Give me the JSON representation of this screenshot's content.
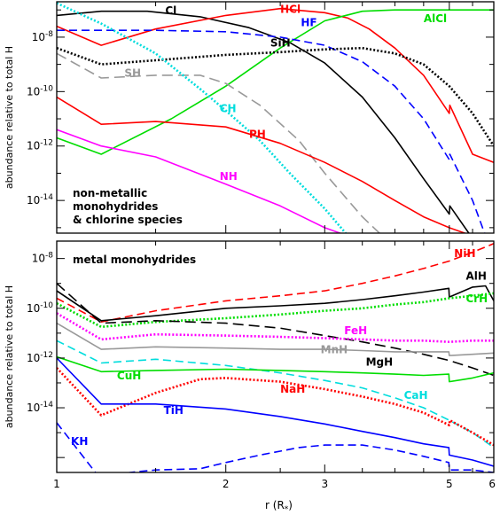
{
  "chart_data": [
    {
      "type": "line",
      "panel": "top",
      "annotation_lines": [
        "non-metallic",
        "monohydrides",
        "& chlorine species"
      ],
      "ylabel": "abundance relative to total H",
      "xlim": [
        1,
        6
      ],
      "xscale": "log",
      "ylim_log10": [
        -15.2,
        -6.7
      ],
      "yticks": [
        {
          "log10": -8,
          "label": "10",
          "exp": "-8"
        },
        {
          "log10": -10,
          "label": "10",
          "exp": "-10"
        },
        {
          "log10": -12,
          "label": "10",
          "exp": "-12"
        },
        {
          "log10": -14,
          "label": "10",
          "exp": "-14"
        }
      ],
      "series": [
        {
          "name": "Cl",
          "color": "#000000",
          "dash": "solid",
          "x": [
            1.0,
            1.2,
            1.45,
            1.8,
            2.2,
            2.6,
            3.0,
            3.5,
            4.0,
            4.5,
            5.0,
            5.01,
            5.5
          ],
          "log10": [
            -7.2,
            -7.05,
            -7.05,
            -7.25,
            -7.65,
            -8.2,
            -8.95,
            -10.2,
            -11.7,
            -13.2,
            -14.5,
            -14.2,
            -15.4
          ]
        },
        {
          "name": "HCl",
          "color": "#ff0000",
          "dash": "solid",
          "x": [
            1.0,
            1.2,
            1.5,
            2.0,
            2.5,
            3.0,
            3.3,
            3.6,
            4.0,
            4.5,
            5.0,
            5.01,
            5.5,
            6.0
          ],
          "log10": [
            -7.6,
            -8.3,
            -7.7,
            -7.2,
            -6.95,
            -7.1,
            -7.3,
            -7.7,
            -8.4,
            -9.4,
            -10.8,
            -10.5,
            -12.3,
            -12.6
          ]
        },
        {
          "name": "AlCl",
          "color": "#00dd00",
          "dash": "solid",
          "x": [
            1.0,
            1.2,
            1.6,
            2.0,
            2.5,
            3.0,
            3.5,
            4.0,
            5.0,
            6.0
          ],
          "log10": [
            -11.7,
            -12.3,
            -11.0,
            -9.8,
            -8.4,
            -7.4,
            -7.05,
            -7.0,
            -7.0,
            -7.0
          ]
        },
        {
          "name": "HF",
          "color": "#0000ff",
          "dash": "dashed",
          "x": [
            1.0,
            1.5,
            2.0,
            2.5,
            3.0,
            3.5,
            4.0,
            4.5,
            5.0,
            5.01,
            5.5,
            5.8
          ],
          "log10": [
            -7.75,
            -7.75,
            -7.8,
            -8.0,
            -8.3,
            -8.9,
            -9.8,
            -11.0,
            -12.5,
            -12.3,
            -14.0,
            -15.3
          ]
        },
        {
          "name": "SiH",
          "color": "#000000",
          "dash": "dotted",
          "x": [
            1.0,
            1.2,
            1.5,
            2.0,
            2.5,
            3.0,
            3.5,
            4.0,
            4.5,
            5.0,
            5.5,
            6.0
          ],
          "log10": [
            -8.4,
            -9.0,
            -8.85,
            -8.65,
            -8.55,
            -8.45,
            -8.4,
            -8.6,
            -9.0,
            -9.8,
            -10.8,
            -12.0
          ]
        },
        {
          "name": "SH",
          "color": "#999999",
          "dash": "longdash",
          "x": [
            1.0,
            1.2,
            1.5,
            1.8,
            2.0,
            2.3,
            2.7,
            3.0,
            3.5,
            3.8
          ],
          "log10": [
            -8.6,
            -9.5,
            -9.4,
            -9.4,
            -9.7,
            -10.5,
            -11.8,
            -13.0,
            -14.6,
            -15.3
          ]
        },
        {
          "name": "CH",
          "color": "#00dddd",
          "dash": "dotted",
          "x": [
            1.0,
            1.2,
            1.5,
            1.8,
            2.0,
            2.3,
            2.6,
            3.0,
            3.3
          ],
          "log10": [
            -6.75,
            -7.5,
            -8.6,
            -9.9,
            -10.7,
            -11.8,
            -13.0,
            -14.3,
            -15.3
          ]
        },
        {
          "name": "PH",
          "color": "#ff0000",
          "dash": "solid",
          "x": [
            1.0,
            1.2,
            1.5,
            2.0,
            2.5,
            3.0,
            3.5,
            4.0,
            4.5,
            5.0,
            5.5
          ],
          "log10": [
            -10.2,
            -11.2,
            -11.1,
            -11.3,
            -11.9,
            -12.6,
            -13.3,
            -14.0,
            -14.6,
            -15.0,
            -15.3
          ]
        },
        {
          "name": "NH",
          "color": "#ff00ff",
          "dash": "solid",
          "x": [
            1.0,
            1.2,
            1.5,
            2.0,
            2.5,
            3.0,
            3.3
          ],
          "log10": [
            -11.4,
            -12.0,
            -12.4,
            -13.4,
            -14.2,
            -15.0,
            -15.3
          ]
        }
      ],
      "labels": [
        {
          "text": "Cl",
          "color": "#000000",
          "x": 1.56,
          "log10": -7.15
        },
        {
          "text": "HCl",
          "color": "#ff0000",
          "x": 2.5,
          "log10": -7.1
        },
        {
          "text": "AlCl",
          "color": "#00dd00",
          "x": 4.5,
          "log10": -7.45
        },
        {
          "text": "HF",
          "color": "#0000ff",
          "x": 2.72,
          "log10": -7.6
        },
        {
          "text": "SiH",
          "color": "#000000",
          "x": 2.4,
          "log10": -8.35
        },
        {
          "text": "SH",
          "color": "#999999",
          "x": 1.32,
          "log10": -9.45
        },
        {
          "text": "CH",
          "color": "#00dddd",
          "x": 1.95,
          "log10": -10.75
        },
        {
          "text": "PH",
          "color": "#ff0000",
          "x": 2.2,
          "log10": -11.7
        },
        {
          "text": "NH",
          "color": "#ff00ff",
          "x": 1.95,
          "log10": -13.25
        }
      ]
    },
    {
      "type": "line",
      "panel": "bottom",
      "annotation_lines": [
        "metal monohydrides"
      ],
      "ylabel": "abundance relative to total H",
      "xlabel": "r (R",
      "xlabel_sub": "*",
      "xlabel_end": ")",
      "xlim": [
        1,
        6
      ],
      "xscale": "log",
      "ylim_log10": [
        -16.6,
        -7.3
      ],
      "xticks": [
        {
          "value": 1,
          "label": "1"
        },
        {
          "value": 2,
          "label": "2"
        },
        {
          "value": 3,
          "label": "3"
        },
        {
          "value": 5,
          "label": "5"
        },
        {
          "value": 6,
          "label": "6"
        }
      ],
      "yticks": [
        {
          "log10": -8,
          "label": "10",
          "exp": "-8"
        },
        {
          "log10": -10,
          "label": "10",
          "exp": "-10"
        },
        {
          "log10": -12,
          "label": "10",
          "exp": "-12"
        },
        {
          "log10": -14,
          "label": "10",
          "exp": "-14"
        }
      ],
      "series": [
        {
          "name": "NiH",
          "color": "#ff0000",
          "dash": "dashed",
          "x": [
            1.0,
            1.2,
            1.5,
            2.0,
            2.5,
            3.0,
            3.5,
            4.0,
            4.5,
            5.0,
            5.5,
            6.0
          ],
          "log10": [
            -9.6,
            -10.55,
            -10.1,
            -9.7,
            -9.5,
            -9.3,
            -9.0,
            -8.7,
            -8.4,
            -8.1,
            -7.75,
            -7.4
          ]
        },
        {
          "name": "AlH",
          "color": "#000000",
          "dash": "solid",
          "x": [
            1.0,
            1.2,
            1.5,
            2.0,
            2.5,
            3.0,
            3.5,
            4.0,
            4.5,
            4.99,
            5.0,
            5.5,
            5.8,
            6.0
          ],
          "log10": [
            -9.3,
            -10.5,
            -10.3,
            -10.0,
            -9.9,
            -9.8,
            -9.65,
            -9.5,
            -9.35,
            -9.2,
            -9.55,
            -9.15,
            -9.1,
            -9.7
          ]
        },
        {
          "name": "CrH",
          "color": "#00dd00",
          "dash": "dotted",
          "x": [
            1.0,
            1.2,
            1.5,
            2.0,
            2.5,
            3.0,
            3.5,
            4.0,
            4.5,
            5.0,
            5.5,
            6.0
          ],
          "log10": [
            -9.8,
            -10.75,
            -10.55,
            -10.4,
            -10.25,
            -10.1,
            -10.0,
            -9.85,
            -9.75,
            -9.6,
            -9.5,
            -9.4
          ]
        },
        {
          "name": "MgH",
          "color": "#000000",
          "dash": "longdash",
          "x": [
            1.0,
            1.2,
            1.5,
            2.0,
            2.5,
            3.0,
            3.5,
            4.0,
            4.5,
            5.0,
            5.5,
            6.0
          ],
          "log10": [
            -9.0,
            -10.6,
            -10.5,
            -10.6,
            -10.8,
            -11.1,
            -11.35,
            -11.6,
            -11.85,
            -12.1,
            -12.4,
            -12.7
          ]
        },
        {
          "name": "FeH",
          "color": "#ff00ff",
          "dash": "dotted",
          "x": [
            1.0,
            1.2,
            1.5,
            2.0,
            2.5,
            3.0,
            3.5,
            4.0,
            4.5,
            5.0,
            5.5,
            6.0
          ],
          "log10": [
            -10.2,
            -11.25,
            -11.05,
            -11.1,
            -11.15,
            -11.2,
            -11.25,
            -11.3,
            -11.3,
            -11.35,
            -11.3,
            -11.3
          ]
        },
        {
          "name": "MnH",
          "color": "#999999",
          "dash": "solid",
          "x": [
            1.0,
            1.2,
            1.5,
            2.0,
            2.5,
            3.0,
            3.5,
            4.0,
            4.5,
            4.99,
            5.0,
            5.5,
            6.0
          ],
          "log10": [
            -10.6,
            -11.65,
            -11.55,
            -11.6,
            -11.65,
            -11.65,
            -11.7,
            -11.75,
            -11.75,
            -11.75,
            -11.9,
            -11.85,
            -11.8
          ]
        },
        {
          "name": "CaH",
          "color": "#00dddd",
          "dash": "dashed",
          "x": [
            1.0,
            1.2,
            1.5,
            2.0,
            2.5,
            3.0,
            3.5,
            4.0,
            4.5,
            5.0,
            5.5,
            6.0
          ],
          "log10": [
            -11.3,
            -12.2,
            -12.05,
            -12.3,
            -12.6,
            -12.9,
            -13.2,
            -13.6,
            -14.0,
            -14.5,
            -15.0,
            -15.6
          ]
        },
        {
          "name": "CuH",
          "color": "#00dd00",
          "dash": "solid",
          "x": [
            1.0,
            1.2,
            1.5,
            2.0,
            2.5,
            3.0,
            3.5,
            4.0,
            4.5,
            4.99,
            5.0,
            5.5,
            6.0
          ],
          "log10": [
            -11.95,
            -12.55,
            -12.5,
            -12.45,
            -12.5,
            -12.55,
            -12.6,
            -12.65,
            -12.7,
            -12.65,
            -12.95,
            -12.8,
            -12.6
          ]
        },
        {
          "name": "NaH",
          "color": "#ff0000",
          "dash": "dotted",
          "x": [
            1.0,
            1.2,
            1.5,
            1.8,
            2.0,
            2.5,
            3.0,
            3.5,
            4.0,
            4.5,
            5.0,
            5.01,
            5.5,
            6.0
          ],
          "log10": [
            -12.4,
            -14.3,
            -13.4,
            -12.85,
            -12.8,
            -12.95,
            -13.25,
            -13.55,
            -13.85,
            -14.2,
            -14.7,
            -14.5,
            -15.0,
            -15.5
          ]
        },
        {
          "name": "TiH",
          "color": "#0000ff",
          "dash": "solid",
          "x": [
            1.0,
            1.2,
            1.5,
            2.0,
            2.5,
            3.0,
            3.5,
            4.0,
            4.5,
            4.99,
            5.0,
            5.5,
            6.0
          ],
          "log10": [
            -12.0,
            -13.85,
            -13.85,
            -14.05,
            -14.35,
            -14.65,
            -14.95,
            -15.2,
            -15.45,
            -15.6,
            -15.9,
            -16.1,
            -16.35
          ]
        },
        {
          "name": "KH",
          "color": "#0000ff",
          "dash": "dashed",
          "x": [
            1.0,
            1.1,
            1.2,
            1.35,
            1.5,
            1.8,
            2.0,
            2.3,
            2.7,
            3.0,
            3.5,
            4.0,
            4.5,
            4.99,
            5.0,
            5.5,
            6.0
          ],
          "log10": [
            -14.6,
            -15.8,
            -16.9,
            -16.6,
            -16.5,
            -16.45,
            -16.2,
            -15.9,
            -15.6,
            -15.5,
            -15.5,
            -15.7,
            -15.95,
            -16.2,
            -16.5,
            -16.5,
            -16.6
          ]
        }
      ],
      "labels": [
        {
          "text": "NiH",
          "color": "#ff0000",
          "x": 5.1,
          "log10": -7.95
        },
        {
          "text": "AlH",
          "color": "#000000",
          "x": 5.35,
          "log10": -8.85
        },
        {
          "text": "CrH",
          "color": "#00dd00",
          "x": 5.35,
          "log10": -9.75
        },
        {
          "text": "FeH",
          "color": "#ff00ff",
          "x": 3.25,
          "log10": -11.05
        },
        {
          "text": "MnH",
          "color": "#999999",
          "x": 2.95,
          "log10": -11.8
        },
        {
          "text": "MgH",
          "color": "#000000",
          "x": 3.55,
          "log10": -12.3
        },
        {
          "text": "CuH",
          "color": "#00dd00",
          "x": 1.28,
          "log10": -12.85
        },
        {
          "text": "NaH",
          "color": "#ff0000",
          "x": 2.5,
          "log10": -13.4
        },
        {
          "text": "CaH",
          "color": "#00dddd",
          "x": 4.15,
          "log10": -13.65
        },
        {
          "text": "TiH",
          "color": "#0000ff",
          "x": 1.55,
          "log10": -14.25
        },
        {
          "text": "KH",
          "color": "#0000ff",
          "x": 1.06,
          "log10": -15.5
        }
      ]
    }
  ]
}
